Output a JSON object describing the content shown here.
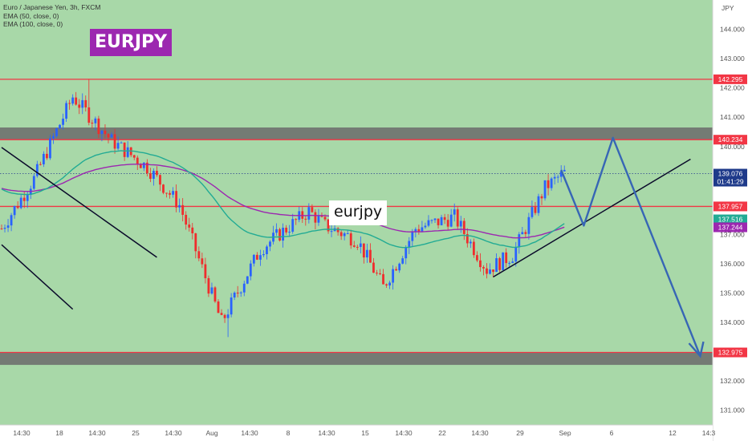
{
  "legend": {
    "symbol_line": "Euro / Japanese Yen, 3h, FXCM",
    "ema50_line": "EMA (50, close, 0)",
    "ema100_line": "EMA (100, close, 0)"
  },
  "badge": {
    "text": "EURJPY",
    "color": "#9c27b0"
  },
  "annotation": {
    "text": "eurjpy"
  },
  "chart_data": {
    "type": "candlestick",
    "title": "Euro / Japanese Yen, 3h, FXCM",
    "symbol": "EURJPY",
    "currency_label": "JPY",
    "ylim": [
      130.5,
      145.0
    ],
    "y_ticks": [
      131.0,
      132.0,
      133.0,
      134.0,
      135.0,
      136.0,
      137.0,
      138.0,
      139.0,
      140.0,
      141.0,
      142.0,
      143.0,
      144.0
    ],
    "x_ticks": [
      "14:30",
      "18",
      "14:30",
      "25",
      "14:30",
      "Aug",
      "14:30",
      "8",
      "14:30",
      "15",
      "14:30",
      "22",
      "14:30",
      "29",
      "Sep",
      "6",
      "12",
      "14:3"
    ],
    "candle_count": 205,
    "key_points": [
      {
        "i": 0,
        "price": 137.2
      },
      {
        "i": 10,
        "price": 138.9
      },
      {
        "i": 22,
        "price": 141.7
      },
      {
        "i": 34,
        "price": 140.2
      },
      {
        "i": 45,
        "price": 139.3
      },
      {
        "i": 55,
        "price": 138.0
      },
      {
        "i": 68,
        "price": 134.0
      },
      {
        "i": 80,
        "price": 136.5
      },
      {
        "i": 95,
        "price": 137.8
      },
      {
        "i": 100,
        "price": 137.3
      },
      {
        "i": 110,
        "price": 136.8
      },
      {
        "i": 118,
        "price": 135.2
      },
      {
        "i": 128,
        "price": 137.2
      },
      {
        "i": 140,
        "price": 137.6
      },
      {
        "i": 150,
        "price": 135.8
      },
      {
        "i": 158,
        "price": 136.3
      },
      {
        "i": 168,
        "price": 138.6
      },
      {
        "i": 174,
        "price": 139.1
      }
    ],
    "ema50_end": 137.516,
    "ema100_end": 137.244,
    "horizontal_levels": [
      142.295,
      140.234,
      137.957,
      132.975
    ],
    "zones": [
      {
        "from": 140.25,
        "to": 140.65
      },
      {
        "from": 132.55,
        "to": 132.97
      }
    ],
    "trendlines": [
      {
        "from": [
          0,
          139.97
        ],
        "to": [
          48,
          136.22
        ]
      },
      {
        "from": [
          0,
          136.65
        ],
        "to": [
          22,
          134.45
        ]
      },
      {
        "from": [
          152,
          135.55
        ],
        "to": [
          213,
          139.57
        ]
      }
    ],
    "projection_path": [
      [
        173,
        139.2
      ],
      [
        180,
        137.3
      ],
      [
        189,
        140.3
      ],
      [
        216,
        132.85
      ]
    ],
    "price_tags": [
      {
        "text": "142.295",
        "price": 142.295,
        "color": "#f23645"
      },
      {
        "text": "140.234",
        "price": 140.234,
        "color": "#f23645"
      },
      {
        "text": "137.957",
        "price": 137.957,
        "color": "#f23645"
      },
      {
        "text": "137.516",
        "price": 137.516,
        "color": "#22ab94"
      },
      {
        "text": "137.244",
        "price": 137.244,
        "color": "#9c27b0"
      },
      {
        "text": "132.975",
        "price": 132.975,
        "color": "#f23645"
      }
    ],
    "last_price": {
      "text": "139.076",
      "countdown": "01:41:29",
      "price": 139.076,
      "color": "#1e3a8a"
    },
    "colors": {
      "background": "#a8d8a8",
      "up": "#2962ff",
      "down": "#ef2d2d",
      "ema50": "#22ab94",
      "ema100": "#9c27b0",
      "level": "#f23645",
      "zone": "#6b6b6b",
      "trendline": "#0a0a2a",
      "projection": "#3766b5"
    }
  }
}
